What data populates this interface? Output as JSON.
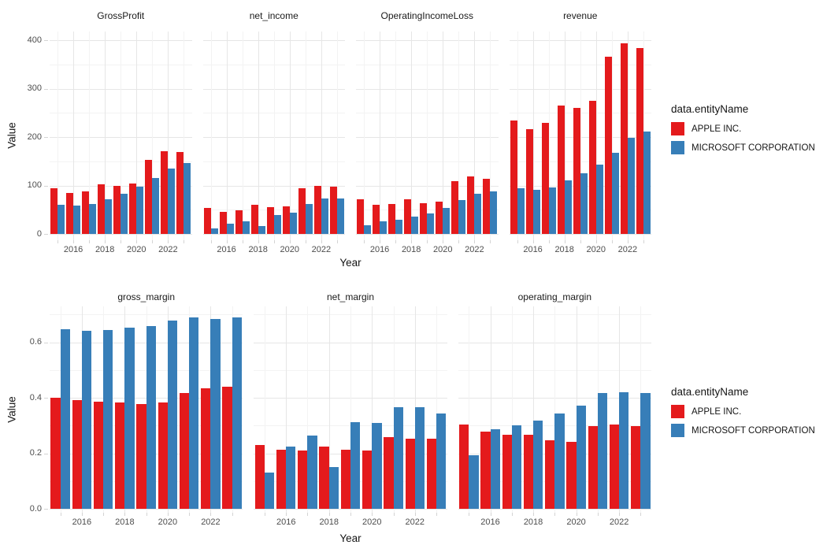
{
  "legend": {
    "title": "data.entityName",
    "items": [
      {
        "label": "APPLE INC.",
        "color": "#E41A1C"
      },
      {
        "label": "MICROSOFT CORPORATION",
        "color": "#377EB8"
      }
    ]
  },
  "chart_data": [
    {
      "type": "bar",
      "row": "top",
      "xlabel": "Year",
      "ylabel": "Value",
      "x": [
        2015,
        2016,
        2017,
        2018,
        2019,
        2020,
        2021,
        2022,
        2023
      ],
      "x_labeled_ticks": [
        2016,
        2018,
        2020,
        2022
      ],
      "y_breaks": [
        0,
        100,
        200,
        300,
        400
      ],
      "y_tick_labels": [
        "0",
        "100",
        "200",
        "300",
        "400"
      ],
      "ylim": [
        0,
        415
      ],
      "grid": true,
      "legend_title": "data.entityName",
      "legend_position": "right",
      "facets": [
        {
          "title": "GrossProfit",
          "series": [
            {
              "name": "APPLE INC.",
              "color": "#E41A1C",
              "values": [
                93.6,
                84.3,
                88.2,
                101.8,
                98.4,
                104.9,
                152.8,
                170.8,
                169.1
              ]
            },
            {
              "name": "MICROSOFT CORPORATION",
              "color": "#377EB8",
              "values": [
                60.5,
                58.4,
                62.3,
                72.0,
                82.9,
                96.9,
                115.9,
                135.6,
                146.1
              ]
            }
          ]
        },
        {
          "title": "net_income",
          "series": [
            {
              "name": "APPLE INC.",
              "color": "#E41A1C",
              "values": [
                53.4,
                45.7,
                48.4,
                59.5,
                55.3,
                57.4,
                94.7,
                99.8,
                97.0
              ]
            },
            {
              "name": "MICROSOFT CORPORATION",
              "color": "#377EB8",
              "values": [
                12.2,
                20.5,
                25.5,
                16.6,
                39.2,
                44.3,
                61.3,
                72.7,
                72.4
              ]
            }
          ]
        },
        {
          "title": "OperatingIncomeLoss",
          "series": [
            {
              "name": "APPLE INC.",
              "color": "#E41A1C",
              "values": [
                71.2,
                60.0,
                61.3,
                70.9,
                63.9,
                66.3,
                108.9,
                119.4,
                114.3
              ]
            },
            {
              "name": "MICROSOFT CORPORATION",
              "color": "#377EB8",
              "values": [
                18.2,
                26.1,
                29.0,
                35.1,
                43.0,
                53.0,
                69.9,
                83.4,
                88.5
              ]
            }
          ]
        },
        {
          "title": "revenue",
          "series": [
            {
              "name": "APPLE INC.",
              "color": "#E41A1C",
              "values": [
                233.7,
                215.6,
                229.2,
                265.6,
                260.2,
                274.5,
                365.8,
                394.3,
                383.3
              ]
            },
            {
              "name": "MICROSOFT CORPORATION",
              "color": "#377EB8",
              "values": [
                93.6,
                91.2,
                96.6,
                110.4,
                125.8,
                143.0,
                168.1,
                198.3,
                211.9
              ]
            }
          ]
        }
      ]
    },
    {
      "type": "bar",
      "row": "bottom",
      "xlabel": "Year",
      "ylabel": "Value",
      "x": [
        2015,
        2016,
        2017,
        2018,
        2019,
        2020,
        2021,
        2022,
        2023
      ],
      "x_labeled_ticks": [
        2016,
        2018,
        2020,
        2022
      ],
      "y_breaks": [
        0,
        0.2,
        0.4,
        0.6
      ],
      "y_tick_labels": [
        "0.0",
        "0.2",
        "0.4",
        "0.6"
      ],
      "ylim": [
        0,
        0.725
      ],
      "grid": true,
      "legend_title": "data.entityName",
      "legend_position": "right",
      "facets": [
        {
          "title": "gross_margin",
          "series": [
            {
              "name": "APPLE INC.",
              "color": "#E41A1C",
              "values": [
                0.401,
                0.391,
                0.385,
                0.383,
                0.378,
                0.382,
                0.418,
                0.433,
                0.441
              ]
            },
            {
              "name": "MICROSOFT CORPORATION",
              "color": "#377EB8",
              "values": [
                0.646,
                0.64,
                0.645,
                0.652,
                0.659,
                0.678,
                0.689,
                0.684,
                0.689
              ]
            }
          ]
        },
        {
          "title": "net_margin",
          "series": [
            {
              "name": "APPLE INC.",
              "color": "#E41A1C",
              "values": [
                0.229,
                0.212,
                0.211,
                0.224,
                0.212,
                0.209,
                0.259,
                0.253,
                0.253
              ]
            },
            {
              "name": "MICROSOFT CORPORATION",
              "color": "#377EB8",
              "values": [
                0.13,
                0.225,
                0.264,
                0.15,
                0.312,
                0.31,
                0.365,
                0.367,
                0.342
              ]
            }
          ]
        },
        {
          "title": "operating_margin",
          "series": [
            {
              "name": "APPLE INC.",
              "color": "#E41A1C",
              "values": [
                0.305,
                0.278,
                0.268,
                0.267,
                0.246,
                0.241,
                0.298,
                0.303,
                0.298
              ]
            },
            {
              "name": "MICROSOFT CORPORATION",
              "color": "#377EB8",
              "values": [
                0.194,
                0.286,
                0.3,
                0.318,
                0.342,
                0.371,
                0.416,
                0.42,
                0.418
              ]
            }
          ]
        }
      ]
    }
  ]
}
